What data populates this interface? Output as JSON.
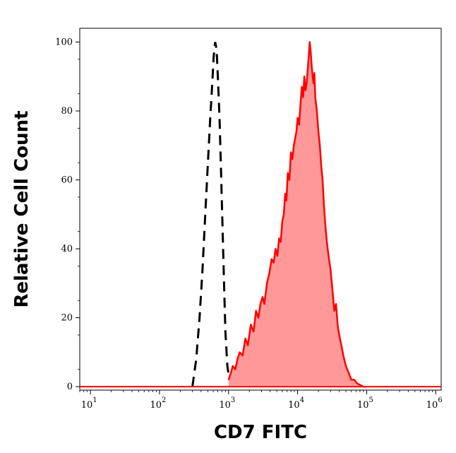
{
  "chart_data": {
    "type": "area",
    "xlabel": "CD7 FITC",
    "ylabel": "Relative Cell Count",
    "x_scale": "log",
    "xlim": [
      7,
      1200000
    ],
    "ylim": [
      -1,
      104
    ],
    "x_ticks": [
      {
        "value": 10,
        "base": "10",
        "exp": "1"
      },
      {
        "value": 100,
        "base": "10",
        "exp": "2"
      },
      {
        "value": 1000,
        "base": "10",
        "exp": "3"
      },
      {
        "value": 10000,
        "base": "10",
        "exp": "4"
      },
      {
        "value": 100000,
        "base": "10",
        "exp": "5"
      },
      {
        "value": 1000000,
        "base": "10",
        "exp": "6"
      }
    ],
    "y_ticks": [
      0,
      20,
      40,
      60,
      80,
      100
    ],
    "grid": false,
    "legend": "none",
    "series": [
      {
        "style": "dashed",
        "color": "#000000",
        "x": [
          300,
          340,
          380,
          420,
          460,
          500,
          540,
          580,
          610,
          640,
          670,
          700,
          740,
          780,
          820,
          860,
          900,
          960,
          1030,
          1120,
          1250,
          1400
        ],
        "y": [
          0,
          8,
          20,
          34,
          50,
          64,
          77,
          88,
          96,
          100,
          98,
          90,
          78,
          62,
          45,
          30,
          16,
          6,
          2,
          1,
          0.5,
          0
        ]
      },
      {
        "style": "filled",
        "color": "#ff0000",
        "fill": "#ff9999",
        "x": [
          1000,
          1080,
          1150,
          1250,
          1350,
          1450,
          1600,
          1750,
          1900,
          2100,
          2300,
          2500,
          2700,
          2900,
          3100,
          3300,
          3600,
          3900,
          4200,
          4500,
          4800,
          5100,
          5400,
          5700,
          6000,
          6300,
          6600,
          6900,
          7200,
          7600,
          8000,
          8400,
          8800,
          9200,
          9600,
          10000,
          10500,
          11000,
          11500,
          12000,
          12500,
          13000,
          13500,
          14000,
          14500,
          15000,
          15500,
          16000,
          16500,
          17000,
          17500,
          18000,
          19000,
          20000,
          21000,
          22000,
          23000,
          24000,
          25000,
          26500,
          28000,
          30000,
          32000,
          34000,
          36000,
          38000,
          40000,
          43000,
          46000,
          50000,
          55000,
          60000,
          66000,
          72000,
          80000,
          90000,
          100000
        ],
        "y": [
          2,
          4,
          6,
          5,
          8,
          10,
          9,
          14,
          12,
          18,
          16,
          22,
          20,
          24,
          26,
          24,
          30,
          33,
          37,
          36,
          40,
          38,
          43,
          42,
          48,
          50,
          56,
          54,
          62,
          60,
          68,
          66,
          70,
          72,
          74,
          78,
          76,
          82,
          87,
          84,
          90,
          86,
          88,
          92,
          96,
          100,
          97,
          93,
          90,
          88,
          91,
          84,
          80,
          74,
          70,
          64,
          60,
          53,
          48,
          42,
          38,
          34,
          28,
          22,
          24,
          18,
          15,
          12,
          9,
          6,
          4,
          2,
          2,
          1,
          0.5,
          0,
          0
        ]
      }
    ]
  }
}
